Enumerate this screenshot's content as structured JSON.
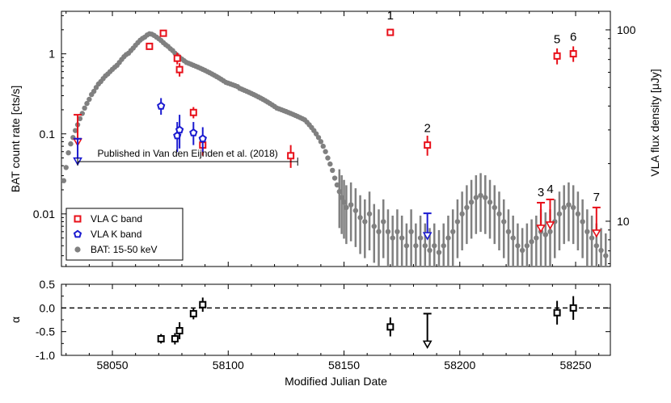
{
  "chart_data": [
    {
      "type": "scatter",
      "xlabel": "",
      "ylabel": "BAT count rate [cts/s]",
      "y2label": "VLA flux density [μJy]",
      "xlim": [
        58028,
        58265
      ],
      "ylim": [
        0.0022,
        3.4
      ],
      "yscale": "log",
      "y2lim": [
        5.8,
        125
      ],
      "y2scale": "log",
      "xticks": [
        58050,
        58100,
        58150,
        58200,
        58250
      ],
      "yticks": [
        {
          "v": 0.01,
          "label": "0.01"
        },
        {
          "v": 0.1,
          "label": "0.1"
        },
        {
          "v": 1,
          "label": "1"
        }
      ],
      "y2ticks": [
        {
          "v": 10,
          "label": "10"
        },
        {
          "v": 100,
          "label": "100"
        }
      ],
      "legend": {
        "position": "bottom-left",
        "entries": [
          {
            "label": "VLA C band",
            "marker": "square",
            "color": "#e8101a"
          },
          {
            "label": "VLA K band",
            "marker": "pentagon",
            "color": "#1a1ad0"
          },
          {
            "label": "BAT: 15-50 keV",
            "marker": "circle",
            "color": "#808080"
          }
        ]
      },
      "annotation": {
        "text": "Published in Van den Eijnden et al. (2018)",
        "x_range": [
          58035,
          58130
        ],
        "y": 0.045
      },
      "series": [
        {
          "name": "BAT: 15-50 keV",
          "marker": "circle",
          "color": "#808080",
          "axis": "left",
          "points": [
            [
              58029,
              0.026
            ],
            [
              58030,
              0.038
            ],
            [
              58031,
              0.058
            ],
            [
              58032,
              0.075
            ],
            [
              58033,
              0.09
            ],
            [
              58034,
              0.11
            ],
            [
              58035,
              0.13
            ],
            [
              58036,
              0.155
            ],
            [
              58037,
              0.18
            ],
            [
              58038,
              0.21
            ],
            [
              58039,
              0.24
            ],
            [
              58040,
              0.27
            ],
            [
              58041,
              0.31
            ],
            [
              58042,
              0.34
            ],
            [
              58043,
              0.38
            ],
            [
              58044,
              0.42
            ],
            [
              58045,
              0.45
            ],
            [
              58046,
              0.49
            ],
            [
              58047,
              0.53
            ],
            [
              58048,
              0.56
            ],
            [
              58049,
              0.6
            ],
            [
              58050,
              0.64
            ],
            [
              58051,
              0.68
            ],
            [
              58052,
              0.72
            ],
            [
              58053,
              0.78
            ],
            [
              58054,
              0.85
            ],
            [
              58055,
              0.92
            ],
            [
              58056,
              0.98
            ],
            [
              58057,
              1.02
            ],
            [
              58058,
              1.1
            ],
            [
              58059,
              1.18
            ],
            [
              58060,
              1.28
            ],
            [
              58061,
              1.38
            ],
            [
              58062,
              1.48
            ],
            [
              58063,
              1.56
            ],
            [
              58064,
              1.62
            ],
            [
              58065,
              1.72
            ],
            [
              58066,
              1.78
            ],
            [
              58067,
              1.76
            ],
            [
              58068,
              1.7
            ],
            [
              58069,
              1.62
            ],
            [
              58070,
              1.55
            ],
            [
              58071,
              1.47
            ],
            [
              58072,
              1.38
            ],
            [
              58073,
              1.3
            ],
            [
              58074,
              1.24
            ],
            [
              58075,
              1.16
            ],
            [
              58076,
              1.1
            ],
            [
              58077,
              1.02
            ],
            [
              58078,
              0.96
            ],
            [
              58079,
              0.9
            ],
            [
              58080,
              0.86
            ],
            [
              58081,
              0.82
            ],
            [
              58082,
              0.78
            ],
            [
              58083,
              0.76
            ],
            [
              58084,
              0.74
            ],
            [
              58085,
              0.72
            ],
            [
              58086,
              0.7
            ],
            [
              58087,
              0.68
            ],
            [
              58088,
              0.66
            ],
            [
              58089,
              0.64
            ],
            [
              58090,
              0.62
            ],
            [
              58091,
              0.6
            ],
            [
              58092,
              0.58
            ],
            [
              58093,
              0.56
            ],
            [
              58094,
              0.54
            ],
            [
              58095,
              0.52
            ],
            [
              58096,
              0.5
            ],
            [
              58097,
              0.48
            ],
            [
              58098,
              0.46
            ],
            [
              58099,
              0.44
            ],
            [
              58100,
              0.43
            ],
            [
              58101,
              0.42
            ],
            [
              58102,
              0.41
            ],
            [
              58103,
              0.4
            ],
            [
              58104,
              0.39
            ],
            [
              58105,
              0.37
            ],
            [
              58106,
              0.36
            ],
            [
              58107,
              0.35
            ],
            [
              58108,
              0.34
            ],
            [
              58109,
              0.33
            ],
            [
              58110,
              0.32
            ],
            [
              58111,
              0.31
            ],
            [
              58112,
              0.3
            ],
            [
              58113,
              0.29
            ],
            [
              58114,
              0.28
            ],
            [
              58115,
              0.27
            ],
            [
              58116,
              0.26
            ],
            [
              58117,
              0.25
            ],
            [
              58118,
              0.24
            ],
            [
              58119,
              0.23
            ],
            [
              58120,
              0.22
            ],
            [
              58121,
              0.21
            ],
            [
              58122,
              0.205
            ],
            [
              58123,
              0.2
            ],
            [
              58124,
              0.195
            ],
            [
              58125,
              0.19
            ],
            [
              58126,
              0.185
            ],
            [
              58127,
              0.18
            ],
            [
              58128,
              0.175
            ],
            [
              58129,
              0.17
            ],
            [
              58130,
              0.165
            ],
            [
              58131,
              0.16
            ],
            [
              58132,
              0.155
            ],
            [
              58133,
              0.15
            ],
            [
              58134,
              0.14
            ],
            [
              58135,
              0.13
            ],
            [
              58136,
              0.12
            ],
            [
              58137,
              0.11
            ],
            [
              58138,
              0.1
            ],
            [
              58139,
              0.09
            ],
            [
              58140,
              0.08
            ],
            [
              58141,
              0.07
            ],
            [
              58142,
              0.06
            ],
            [
              58143,
              0.05
            ],
            [
              58144,
              0.042
            ],
            [
              58145,
              0.035
            ],
            [
              58146,
              0.028
            ],
            [
              58147,
              0.023
            ],
            [
              58148,
              0.019
            ],
            [
              58149,
              0.016
            ],
            [
              58150,
              0.014
            ],
            [
              58151,
              0.012
            ],
            [
              58153,
              0.013
            ],
            [
              58155,
              0.011
            ],
            [
              58157,
              0.009
            ],
            [
              58159,
              0.008
            ],
            [
              58161,
              0.01
            ],
            [
              58163,
              0.007
            ],
            [
              58165,
              0.006
            ],
            [
              58167,
              0.008
            ],
            [
              58169,
              0.006
            ],
            [
              58171,
              0.005
            ],
            [
              58173,
              0.006
            ],
            [
              58175,
              0.005
            ],
            [
              58177,
              0.004
            ],
            [
              58179,
              0.006
            ],
            [
              58181,
              0.004
            ],
            [
              58183,
              0.005
            ],
            [
              58185,
              0.004
            ],
            [
              58187,
              0.0035
            ],
            [
              58189,
              0.004
            ],
            [
              58191,
              0.0033
            ],
            [
              58193,
              0.004
            ],
            [
              58195,
              0.005
            ],
            [
              58197,
              0.006
            ],
            [
              58199,
              0.008
            ],
            [
              58201,
              0.01
            ],
            [
              58203,
              0.012
            ],
            [
              58205,
              0.014
            ],
            [
              58207,
              0.016
            ],
            [
              58209,
              0.017
            ],
            [
              58211,
              0.016
            ],
            [
              58213,
              0.014
            ],
            [
              58215,
              0.012
            ],
            [
              58217,
              0.01
            ],
            [
              58219,
              0.008
            ],
            [
              58221,
              0.006
            ],
            [
              58223,
              0.005
            ],
            [
              58225,
              0.004
            ],
            [
              58227,
              0.0035
            ],
            [
              58229,
              0.004
            ],
            [
              58231,
              0.0045
            ],
            [
              58233,
              0.005
            ],
            [
              58235,
              0.006
            ],
            [
              58237,
              0.0055
            ],
            [
              58239,
              0.006
            ],
            [
              58241,
              0.008
            ],
            [
              58243,
              0.01
            ],
            [
              58245,
              0.012
            ],
            [
              58247,
              0.013
            ],
            [
              58249,
              0.012
            ],
            [
              58251,
              0.01
            ],
            [
              58253,
              0.008
            ],
            [
              58255,
              0.006
            ],
            [
              58257,
              0.005
            ],
            [
              58259,
              0.004
            ],
            [
              58261,
              0.0035
            ],
            [
              58263,
              0.003
            ]
          ]
        },
        {
          "name": "VLA C band",
          "marker": "square",
          "color": "#e8101a",
          "axis": "right",
          "points": [
            {
              "x": 58066,
              "y": 82,
              "err": 0
            },
            {
              "x": 58072,
              "y": 96,
              "err": 0
            },
            {
              "x": 58078,
              "y": 71,
              "err": 5
            },
            {
              "x": 58079,
              "y": 62,
              "err": 5
            },
            {
              "x": 58085,
              "y": 37,
              "err": 2.5
            },
            {
              "x": 58089,
              "y": 25,
              "err": 3
            },
            {
              "x": 58127,
              "y": 22,
              "err": 3
            },
            {
              "x": 58170,
              "y": 97,
              "err": 0,
              "label": "1"
            },
            {
              "x": 58186,
              "y": 25,
              "err": 3,
              "label": "2"
            },
            {
              "x": 58242,
              "y": 73,
              "err": 7,
              "label": "5"
            },
            {
              "x": 58249,
              "y": 75,
              "err": 7,
              "label": "6"
            }
          ],
          "upper_limits": [
            {
              "x": 58035,
              "y": 36
            },
            {
              "x": 58235,
              "y": 12.5,
              "label": "3"
            },
            {
              "x": 58239,
              "y": 13,
              "label": "4"
            },
            {
              "x": 58259,
              "y": 11.8,
              "label": "7"
            }
          ]
        },
        {
          "name": "VLA K band",
          "marker": "pentagon",
          "color": "#1a1ad0",
          "axis": "right",
          "points": [
            {
              "x": 58071,
              "y": 40,
              "err": 4
            },
            {
              "x": 58078,
              "y": 28,
              "err": 5
            },
            {
              "x": 58079,
              "y": 30,
              "err": 6
            },
            {
              "x": 58085,
              "y": 29,
              "err": 4
            },
            {
              "x": 58089,
              "y": 27,
              "err": 4
            }
          ],
          "upper_limits": [
            {
              "x": 58035,
              "y": 27
            },
            {
              "x": 58186,
              "y": 11
            }
          ]
        }
      ]
    },
    {
      "type": "scatter",
      "xlabel": "Modified Julian Date",
      "ylabel": "α",
      "xlim": [
        58028,
        58265
      ],
      "ylim": [
        -1.0,
        0.5
      ],
      "xticks": [
        58050,
        58100,
        58150,
        58200,
        58250
      ],
      "yticks": [
        {
          "v": -1.0,
          "label": "-1.0"
        },
        {
          "v": -0.5,
          "label": "-0.5"
        },
        {
          "v": 0.0,
          "label": "0.0"
        },
        {
          "v": 0.5,
          "label": "0.5"
        }
      ],
      "reference_line": {
        "y": 0,
        "style": "dashed"
      },
      "series": [
        {
          "marker": "square",
          "color": "#000000",
          "points": [
            {
              "x": 58071,
              "y": -0.65,
              "err": 0.1
            },
            {
              "x": 58077,
              "y": -0.65,
              "err": 0.12
            },
            {
              "x": 58079,
              "y": -0.48,
              "err": 0.18
            },
            {
              "x": 58085,
              "y": -0.12,
              "err": 0.12
            },
            {
              "x": 58089,
              "y": 0.07,
              "err": 0.15
            },
            {
              "x": 58170,
              "y": -0.4,
              "err": 0.2
            },
            {
              "x": 58242,
              "y": -0.1,
              "err": 0.25
            },
            {
              "x": 58249,
              "y": 0.0,
              "err": 0.25
            }
          ],
          "upper_limits": [
            {
              "x": 58186,
              "y": -0.12
            }
          ]
        }
      ]
    }
  ]
}
